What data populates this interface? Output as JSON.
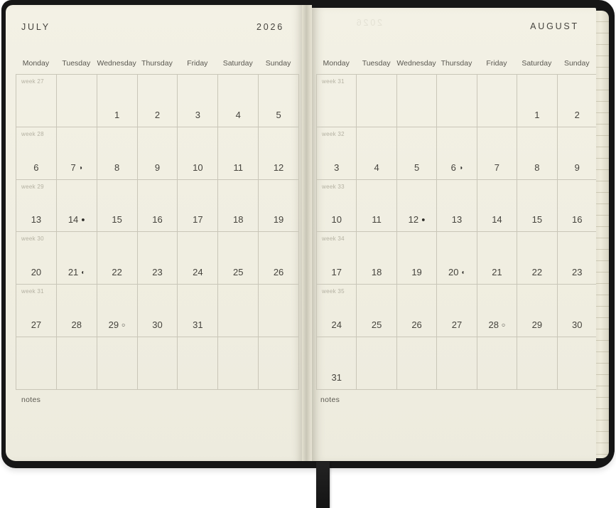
{
  "left_page": {
    "month_title": "JULY",
    "year": "2026",
    "day_headers": [
      "Monday",
      "Tuesday",
      "Wednesday",
      "Thursday",
      "Friday",
      "Saturday",
      "Sunday"
    ],
    "weeks": [
      {
        "label": "week 27",
        "days": [
          "",
          "",
          "1",
          "2",
          "3",
          "4",
          "5"
        ]
      },
      {
        "label": "week 28",
        "days": [
          "6",
          "7",
          "8",
          "9",
          "10",
          "11",
          "12"
        ]
      },
      {
        "label": "week 29",
        "days": [
          "13",
          "14",
          "15",
          "16",
          "17",
          "18",
          "19"
        ]
      },
      {
        "label": "week 30",
        "days": [
          "20",
          "21",
          "22",
          "23",
          "24",
          "25",
          "26"
        ]
      },
      {
        "label": "week 31",
        "days": [
          "27",
          "28",
          "29",
          "30",
          "31",
          "",
          ""
        ]
      },
      {
        "label": "",
        "days": [
          "",
          "",
          "",
          "",
          "",
          "",
          ""
        ]
      }
    ],
    "moon_phases": {
      "7": {
        "glyph": "◑",
        "name": "last-quarter-moon"
      },
      "14": {
        "glyph": "●",
        "name": "new-moon"
      },
      "21": {
        "glyph": "◐",
        "name": "first-quarter-moon"
      },
      "29": {
        "glyph": "○",
        "name": "full-moon"
      }
    },
    "notes_label": "notes"
  },
  "right_page": {
    "month_title": "AUGUST",
    "ghost_year": "2026",
    "day_headers": [
      "Monday",
      "Tuesday",
      "Wednesday",
      "Thursday",
      "Friday",
      "Saturday",
      "Sunday"
    ],
    "weeks": [
      {
        "label": "week 31",
        "days": [
          "",
          "",
          "",
          "",
          "",
          "1",
          "2"
        ]
      },
      {
        "label": "week 32",
        "days": [
          "3",
          "4",
          "5",
          "6",
          "7",
          "8",
          "9"
        ]
      },
      {
        "label": "week 33",
        "days": [
          "10",
          "11",
          "12",
          "13",
          "14",
          "15",
          "16"
        ]
      },
      {
        "label": "week 34",
        "days": [
          "17",
          "18",
          "19",
          "20",
          "21",
          "22",
          "23"
        ]
      },
      {
        "label": "week 35",
        "days": [
          "24",
          "25",
          "26",
          "27",
          "28",
          "29",
          "30"
        ]
      },
      {
        "label": "",
        "days": [
          "31",
          "",
          "",
          "",
          "",
          "",
          ""
        ]
      }
    ],
    "moon_phases": {
      "6": {
        "glyph": "◑",
        "name": "last-quarter-moon"
      },
      "12": {
        "glyph": "●",
        "name": "new-moon"
      },
      "20": {
        "glyph": "◐",
        "name": "first-quarter-moon"
      },
      "28": {
        "glyph": "○",
        "name": "full-moon"
      }
    },
    "notes_label": "notes"
  },
  "colors": {
    "cover_black": "#161616",
    "page_cream": "#f1eee1",
    "grid_line": "#c9c6b8",
    "date_text": "#45433d",
    "week_label": "#b4b1a2",
    "day_header_text": "#595750",
    "ribbon_black": "#1a1a1a"
  }
}
